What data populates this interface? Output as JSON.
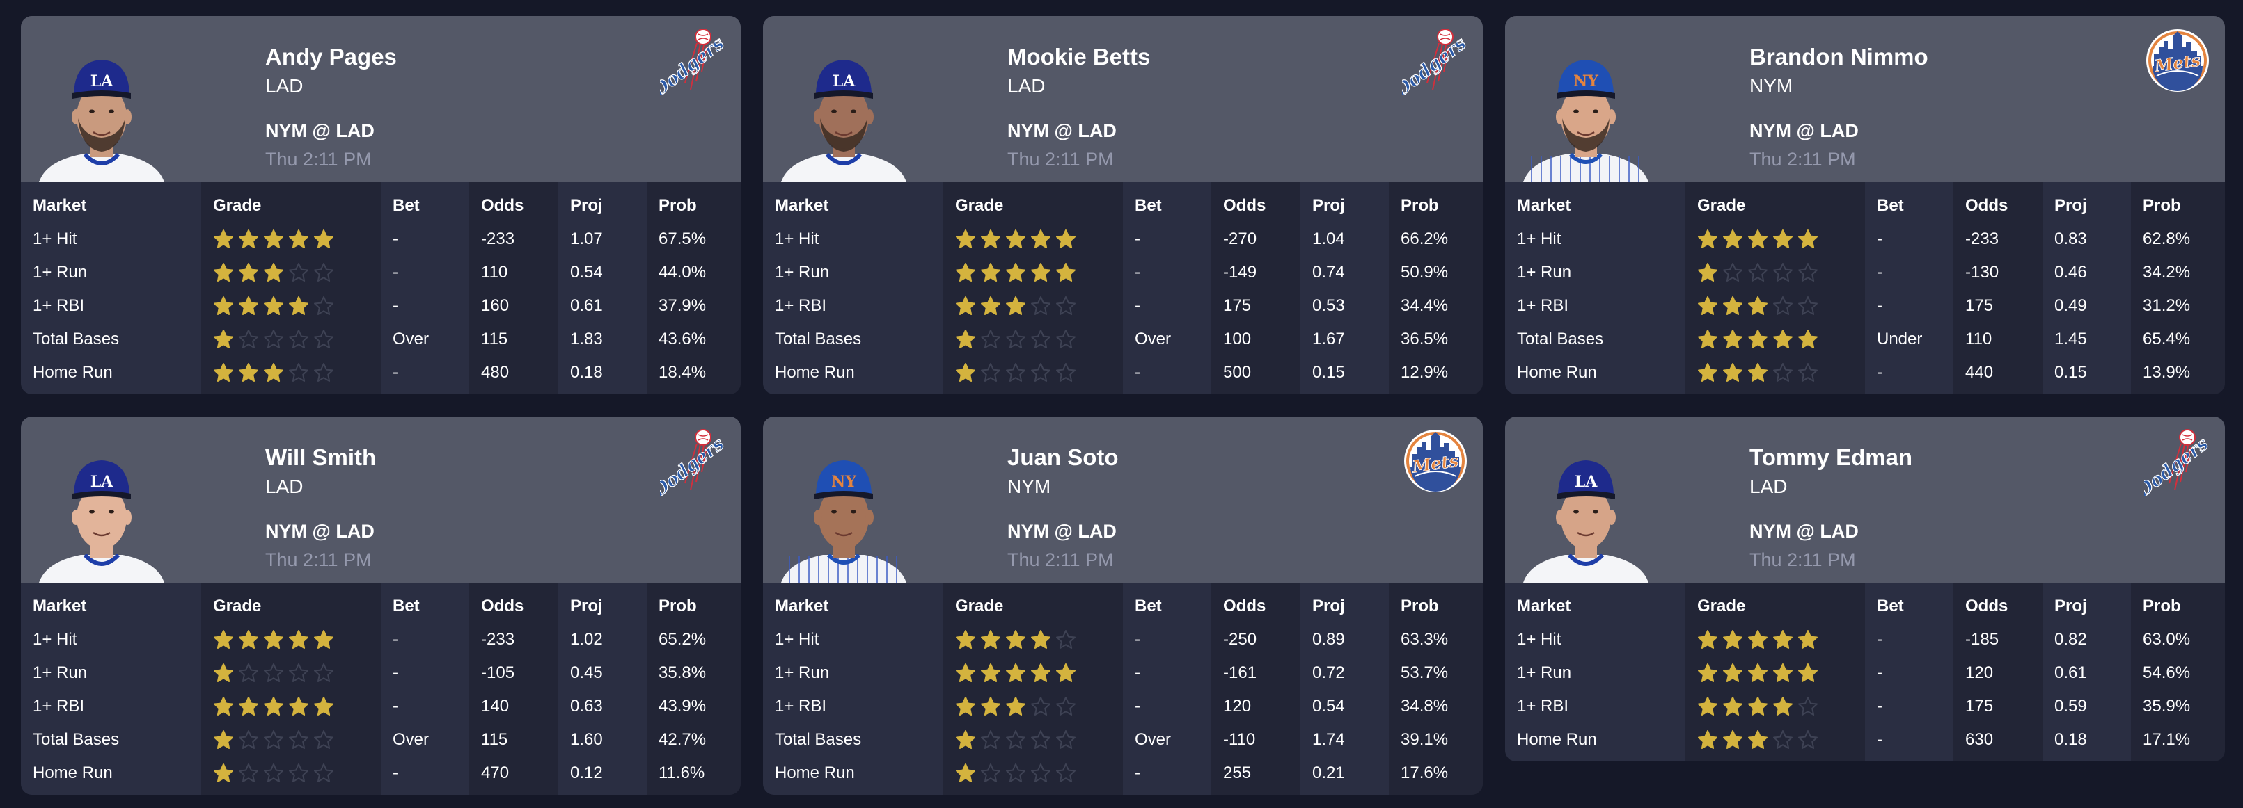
{
  "columns": [
    "Market",
    "Grade",
    "Bet",
    "Odds",
    "Proj",
    "Prob"
  ],
  "colors": {
    "page_bg": "#151828",
    "header_bg": "#545867",
    "col_odd": "#2a2e42",
    "col_even": "#222536",
    "star_filled": "#d4b33e",
    "star_empty": "#3e4254",
    "time_text": "#9599ad"
  },
  "cards": [
    {
      "name": "Andy Pages",
      "team": "LAD",
      "matchup": "NYM @ LAD",
      "time": "Thu 2:11 PM",
      "logo": "dodgers-logo",
      "cap": "la-cap",
      "skin": "#c99a7e",
      "beard": true,
      "rows": [
        {
          "market": "1+ Hit",
          "grade": 5,
          "bet": "-",
          "odds": "-233",
          "proj": "1.07",
          "prob": "67.5%"
        },
        {
          "market": "1+ Run",
          "grade": 3,
          "bet": "-",
          "odds": "110",
          "proj": "0.54",
          "prob": "44.0%"
        },
        {
          "market": "1+ RBI",
          "grade": 4,
          "bet": "-",
          "odds": "160",
          "proj": "0.61",
          "prob": "37.9%"
        },
        {
          "market": "Total Bases",
          "grade": 1,
          "bet": "Over",
          "odds": "115",
          "proj": "1.83",
          "prob": "43.6%"
        },
        {
          "market": "Home Run",
          "grade": 3,
          "bet": "-",
          "odds": "480",
          "proj": "0.18",
          "prob": "18.4%"
        }
      ]
    },
    {
      "name": "Mookie Betts",
      "team": "LAD",
      "matchup": "NYM @ LAD",
      "time": "Thu 2:11 PM",
      "logo": "dodgers-logo",
      "cap": "la-cap",
      "skin": "#a0705a",
      "beard": true,
      "rows": [
        {
          "market": "1+ Hit",
          "grade": 5,
          "bet": "-",
          "odds": "-270",
          "proj": "1.04",
          "prob": "66.2%"
        },
        {
          "market": "1+ Run",
          "grade": 5,
          "bet": "-",
          "odds": "-149",
          "proj": "0.74",
          "prob": "50.9%"
        },
        {
          "market": "1+ RBI",
          "grade": 3,
          "bet": "-",
          "odds": "175",
          "proj": "0.53",
          "prob": "34.4%"
        },
        {
          "market": "Total Bases",
          "grade": 1,
          "bet": "Over",
          "odds": "100",
          "proj": "1.67",
          "prob": "36.5%"
        },
        {
          "market": "Home Run",
          "grade": 1,
          "bet": "-",
          "odds": "500",
          "proj": "0.15",
          "prob": "12.9%"
        }
      ]
    },
    {
      "name": "Brandon Nimmo",
      "team": "NYM",
      "matchup": "NYM @ LAD",
      "time": "Thu 2:11 PM",
      "logo": "mets-logo",
      "cap": "ny-cap",
      "skin": "#d9a689",
      "beard": true,
      "rows": [
        {
          "market": "1+ Hit",
          "grade": 5,
          "bet": "-",
          "odds": "-233",
          "proj": "0.83",
          "prob": "62.8%"
        },
        {
          "market": "1+ Run",
          "grade": 1,
          "bet": "-",
          "odds": "-130",
          "proj": "0.46",
          "prob": "34.2%"
        },
        {
          "market": "1+ RBI",
          "grade": 3,
          "bet": "-",
          "odds": "175",
          "proj": "0.49",
          "prob": "31.2%"
        },
        {
          "market": "Total Bases",
          "grade": 5,
          "bet": "Under",
          "odds": "110",
          "proj": "1.45",
          "prob": "65.4%"
        },
        {
          "market": "Home Run",
          "grade": 3,
          "bet": "-",
          "odds": "440",
          "proj": "0.15",
          "prob": "13.9%"
        }
      ]
    },
    {
      "name": "Will Smith",
      "team": "LAD",
      "matchup": "NYM @ LAD",
      "time": "Thu 2:11 PM",
      "logo": "dodgers-logo",
      "cap": "la-cap",
      "skin": "#e2b49a",
      "beard": false,
      "rows": [
        {
          "market": "1+ Hit",
          "grade": 5,
          "bet": "-",
          "odds": "-233",
          "proj": "1.02",
          "prob": "65.2%"
        },
        {
          "market": "1+ Run",
          "grade": 1,
          "bet": "-",
          "odds": "-105",
          "proj": "0.45",
          "prob": "35.8%"
        },
        {
          "market": "1+ RBI",
          "grade": 5,
          "bet": "-",
          "odds": "140",
          "proj": "0.63",
          "prob": "43.9%"
        },
        {
          "market": "Total Bases",
          "grade": 1,
          "bet": "Over",
          "odds": "115",
          "proj": "1.60",
          "prob": "42.7%"
        },
        {
          "market": "Home Run",
          "grade": 1,
          "bet": "-",
          "odds": "470",
          "proj": "0.12",
          "prob": "11.6%"
        }
      ]
    },
    {
      "name": "Juan Soto",
      "team": "NYM",
      "matchup": "NYM @ LAD",
      "time": "Thu 2:11 PM",
      "logo": "mets-logo",
      "cap": "ny-cap",
      "skin": "#a57358",
      "beard": false,
      "rows": [
        {
          "market": "1+ Hit",
          "grade": 4,
          "bet": "-",
          "odds": "-250",
          "proj": "0.89",
          "prob": "63.3%"
        },
        {
          "market": "1+ Run",
          "grade": 5,
          "bet": "-",
          "odds": "-161",
          "proj": "0.72",
          "prob": "53.7%"
        },
        {
          "market": "1+ RBI",
          "grade": 3,
          "bet": "-",
          "odds": "120",
          "proj": "0.54",
          "prob": "34.8%"
        },
        {
          "market": "Total Bases",
          "grade": 1,
          "bet": "Over",
          "odds": "-110",
          "proj": "1.74",
          "prob": "39.1%"
        },
        {
          "market": "Home Run",
          "grade": 1,
          "bet": "-",
          "odds": "255",
          "proj": "0.21",
          "prob": "17.6%"
        }
      ]
    },
    {
      "name": "Tommy Edman",
      "team": "LAD",
      "matchup": "NYM @ LAD",
      "time": "Thu 2:11 PM",
      "logo": "dodgers-logo",
      "cap": "la-cap",
      "skin": "#d6a488",
      "beard": false,
      "rows": [
        {
          "market": "1+ Hit",
          "grade": 5,
          "bet": "-",
          "odds": "-185",
          "proj": "0.82",
          "prob": "63.0%"
        },
        {
          "market": "1+ Run",
          "grade": 5,
          "bet": "-",
          "odds": "120",
          "proj": "0.61",
          "prob": "54.6%"
        },
        {
          "market": "1+ RBI",
          "grade": 4,
          "bet": "-",
          "odds": "175",
          "proj": "0.59",
          "prob": "35.9%"
        },
        {
          "market": "Home Run",
          "grade": 3,
          "bet": "-",
          "odds": "630",
          "proj": "0.18",
          "prob": "17.1%"
        }
      ]
    }
  ]
}
